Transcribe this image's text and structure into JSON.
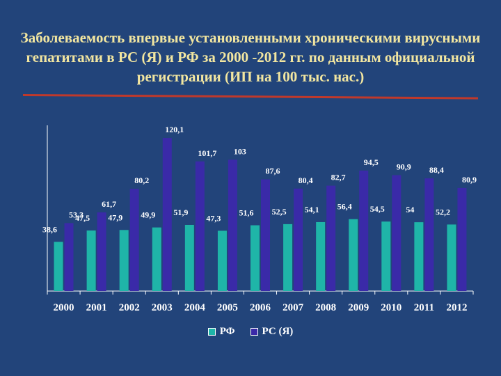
{
  "title": "Заболеваемость впервые установленными хроническими вирусными гепатитами в РС (Я) и РФ за 2000 -2012 гг. по данным официальной регистрации (ИП на 100 тыс. нас.)",
  "colors": {
    "background": "#22447a",
    "title_text": "#f2e6a0",
    "title_rule": "#c0392b",
    "series_rf": "#1fb5a8",
    "series_rs": "#3a2aa8",
    "text": "#ffffff"
  },
  "chart_data": {
    "type": "bar",
    "title": "Заболеваемость впервые установленными хроническими вирусными гепатитами в РС (Я) и РФ за 2000 -2012 гг. по данным официальной регистрации (ИП на 100 тыс. нас.)",
    "categories": [
      "2000",
      "2001",
      "2002",
      "2003",
      "2004",
      "2005",
      "2006",
      "2007",
      "2008",
      "2009",
      "2010",
      "2011",
      "2012"
    ],
    "series": [
      {
        "name": "РФ",
        "values": [
          38.6,
          47.5,
          47.9,
          49.9,
          51.9,
          47.3,
          51.6,
          52.5,
          54.1,
          56.4,
          54.5,
          54,
          52.2
        ],
        "labels": [
          "38,6",
          "47,5",
          "47,9",
          "49,9",
          "51,9",
          "47,3",
          "51,6",
          "52,5",
          "54,1",
          "56,4",
          "54,5",
          "54",
          "52,2"
        ]
      },
      {
        "name": "РС (Я)",
        "values": [
          53.3,
          61.7,
          80.2,
          120.1,
          101.7,
          103,
          87.6,
          80.4,
          82.7,
          94.5,
          90.9,
          88.4,
          80.9
        ],
        "labels": [
          "53,3",
          "61,7",
          "80,2",
          "120,1",
          "101,7",
          "103",
          "87,6",
          "80,4",
          "82,7",
          "94,5",
          "90,9",
          "88,4",
          "80,9"
        ]
      }
    ],
    "ylim": [
      0,
      130
    ],
    "grid": false,
    "legend": "bottom"
  }
}
